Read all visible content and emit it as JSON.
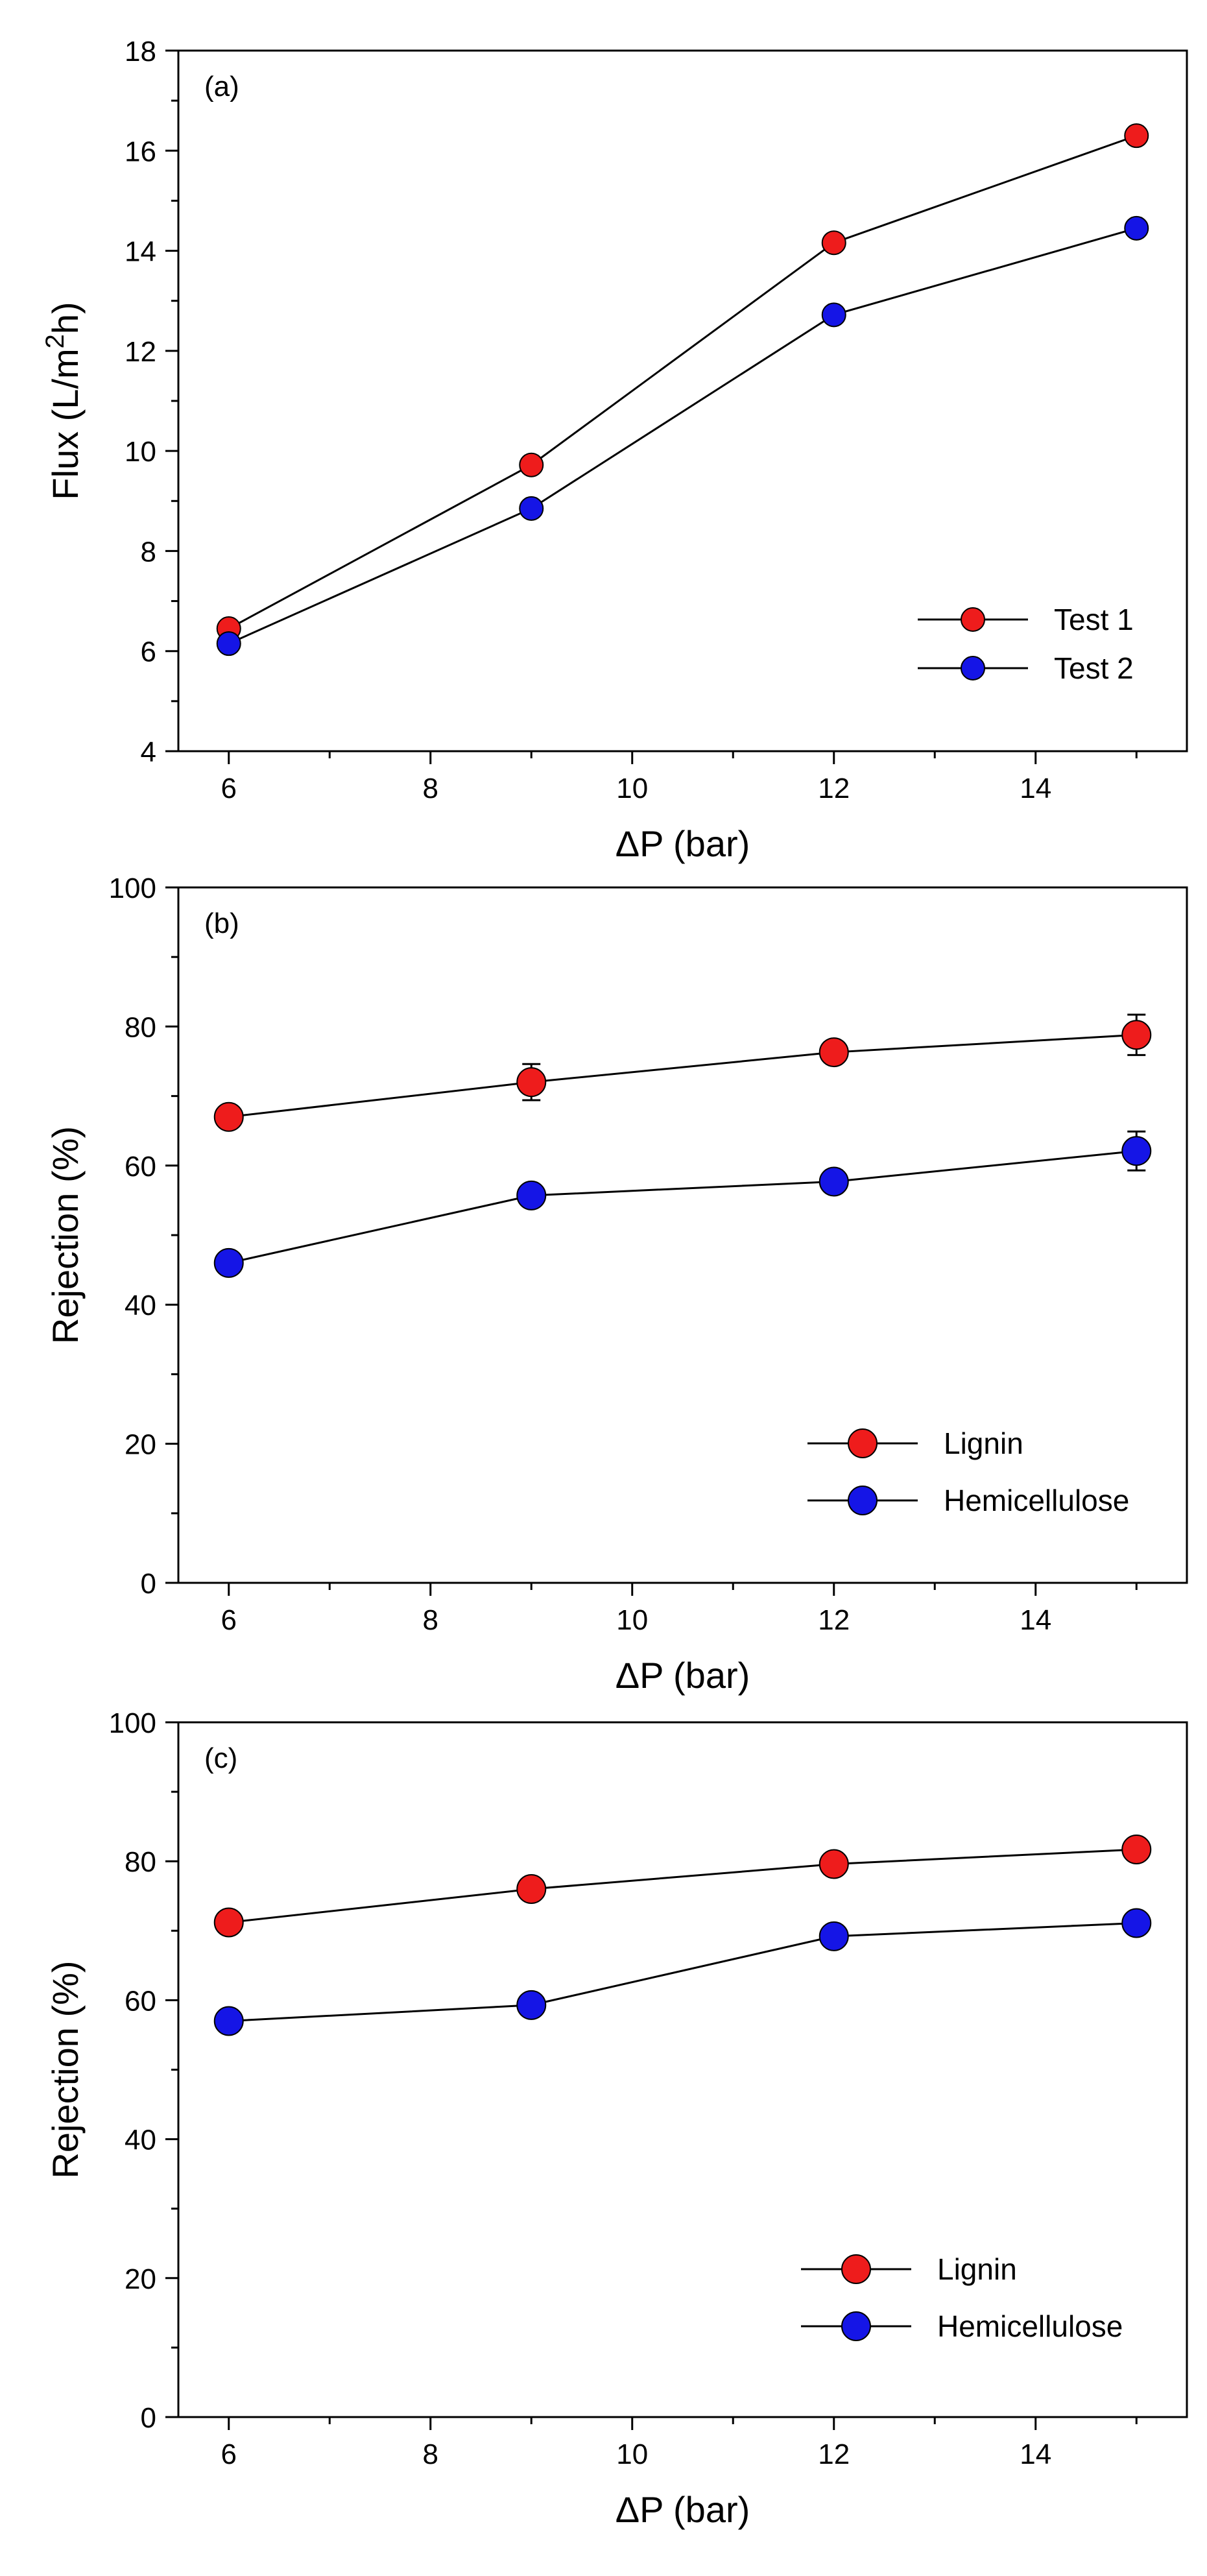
{
  "chart_data": [
    {
      "type": "line",
      "panel_label": "(a)",
      "xlabel": "ΔP (bar)",
      "ylabel_main": "Flux (L/m",
      "ylabel_sup": "2",
      "ylabel_tail": "h)",
      "xlim": [
        5.5,
        15.5
      ],
      "ylim": [
        4,
        18
      ],
      "xticks": [
        6,
        8,
        10,
        12,
        14
      ],
      "yticks": [
        4,
        6,
        8,
        10,
        12,
        14,
        16,
        18
      ],
      "legend_position": "bottom-right",
      "series": [
        {
          "name": "Test 1",
          "color": "#ee1c1c",
          "x": [
            6,
            9,
            12,
            15
          ],
          "y": [
            6.45,
            9.72,
            14.16,
            16.3
          ],
          "err": [
            0,
            0,
            0,
            0
          ]
        },
        {
          "name": "Test 2",
          "color": "#1515e6",
          "x": [
            6,
            9,
            12,
            15
          ],
          "y": [
            6.15,
            8.85,
            12.72,
            14.45
          ],
          "err": [
            0,
            0,
            0,
            0
          ]
        }
      ]
    },
    {
      "type": "line",
      "panel_label": "(b)",
      "xlabel": "ΔP (bar)",
      "ylabel_main": "Rejection (%)",
      "ylabel_sup": "",
      "ylabel_tail": "",
      "xlim": [
        5.5,
        15.5
      ],
      "ylim": [
        0,
        100
      ],
      "xticks": [
        6,
        8,
        10,
        12,
        14
      ],
      "yticks": [
        0,
        20,
        40,
        60,
        80,
        100
      ],
      "legend_position": "bottom-right",
      "series": [
        {
          "name": "Lignin",
          "color": "#ee1c1c",
          "x": [
            6,
            9,
            12,
            15
          ],
          "y": [
            67.0,
            72.0,
            76.3,
            78.8
          ],
          "err": [
            0.8,
            2.6,
            0.8,
            2.9
          ]
        },
        {
          "name": "Hemicellulose",
          "color": "#1515e6",
          "x": [
            6,
            9,
            12,
            15
          ],
          "y": [
            46.0,
            55.7,
            57.7,
            62.1
          ],
          "err": [
            0.6,
            0.8,
            1.6,
            2.8
          ]
        }
      ]
    },
    {
      "type": "line",
      "panel_label": "(c)",
      "xlabel": "ΔP (bar)",
      "ylabel_main": "Rejection (%)",
      "ylabel_sup": "",
      "ylabel_tail": "",
      "xlim": [
        5.5,
        15.5
      ],
      "ylim": [
        0,
        100
      ],
      "xticks": [
        6,
        8,
        10,
        12,
        14
      ],
      "yticks": [
        0,
        20,
        40,
        60,
        80,
        100
      ],
      "legend_position": "bottom-right",
      "series": [
        {
          "name": "Lignin",
          "color": "#ee1c1c",
          "x": [
            6,
            9,
            12,
            15
          ],
          "y": [
            71.2,
            76.0,
            79.6,
            81.7
          ],
          "err": [
            0,
            0,
            0,
            0
          ]
        },
        {
          "name": "Hemicellulose",
          "color": "#1515e6",
          "x": [
            6,
            9,
            12,
            15
          ],
          "y": [
            57.0,
            59.3,
            69.2,
            71.1
          ],
          "err": [
            0,
            0,
            0,
            0
          ]
        }
      ]
    }
  ]
}
